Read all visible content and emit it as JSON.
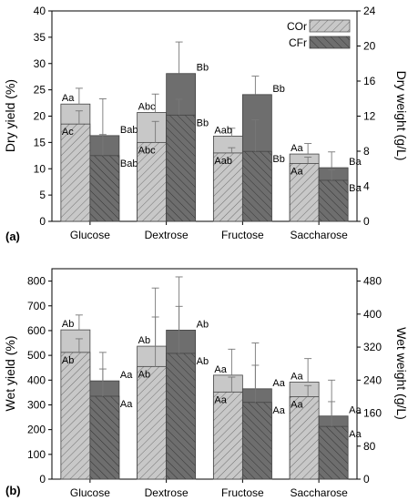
{
  "colors": {
    "cor_fill": "#c8c8c8",
    "cfr_fill": "#6e6e6e",
    "axis": "#000000",
    "hatch": "#000000"
  },
  "chart_data": [
    {
      "type": "bar",
      "subtype": "stacked-bar",
      "panel_label": "(a)",
      "categories": [
        "Glucose",
        "Dextrose",
        "Fructose",
        "Saccharose"
      ],
      "ylabel": "Dry yield (%)",
      "y2label": "Dry weight (g/L)",
      "ylim": [
        0,
        40
      ],
      "y2lim": [
        0,
        24
      ],
      "yticks": [
        "0",
        "5",
        "10",
        "15",
        "20",
        "25",
        "30",
        "35",
        "40"
      ],
      "y2ticks": [
        "0",
        "4",
        "8",
        "12",
        "16",
        "20",
        "24"
      ],
      "legend": {
        "position": "top-right",
        "entries": [
          "COr",
          "CFr"
        ]
      },
      "series": [
        {
          "name": "COr",
          "inner_values": [
            18.5,
            15.0,
            13.0,
            11.0
          ],
          "inner_errors": [
            2.5,
            4.0,
            1.0,
            1.2
          ],
          "inner_labels": [
            "Ac",
            "Abc",
            "Aab",
            "Aa"
          ],
          "total_values": [
            22.3,
            20.7,
            16.2,
            12.8
          ],
          "total_errors": [
            3.0,
            3.5,
            1.5,
            2.0
          ],
          "total_labels": [
            "Aa",
            "Abc",
            "Aab",
            "Aa"
          ]
        },
        {
          "name": "CFr",
          "inner_values": [
            12.5,
            20.2,
            13.3,
            7.8
          ],
          "inner_errors": [
            4.0,
            3.0,
            6.0,
            2.0
          ],
          "inner_labels": [
            "Bab",
            "Bb",
            "Bb",
            "Ba"
          ],
          "total_values": [
            16.3,
            28.1,
            24.1,
            10.2
          ],
          "total_errors": [
            7.0,
            6.0,
            3.5,
            3.0
          ],
          "total_labels": [
            "Bab",
            "Bb",
            "Bb",
            "Ba"
          ]
        }
      ]
    },
    {
      "type": "bar",
      "subtype": "stacked-bar",
      "panel_label": "(b)",
      "categories": [
        "Glucose",
        "Dextrose",
        "Fructose",
        "Saccharose"
      ],
      "ylabel": "Wet yield (%)",
      "y2label": "Wet weight (g/L)",
      "ylim": [
        0,
        850
      ],
      "y2lim": [
        0,
        510
      ],
      "yticks": [
        "0",
        "100",
        "200",
        "300",
        "400",
        "500",
        "600",
        "700",
        "800"
      ],
      "y2ticks": [
        "0",
        "80",
        "160",
        "240",
        "320",
        "400",
        "480"
      ],
      "series": [
        {
          "name": "COr",
          "inner_values": [
            512,
            455,
            352,
            333
          ],
          "inner_errors": [
            55,
            200,
            60,
            45
          ],
          "inner_labels": [
            "Ab",
            "Ab",
            "Aa",
            "Aa"
          ],
          "total_values": [
            603,
            537,
            420,
            392
          ],
          "total_errors": [
            60,
            235,
            105,
            95
          ],
          "total_labels": [
            "Ab",
            "Ab",
            "Aa",
            "Aa"
          ]
        },
        {
          "name": "CFr",
          "inner_values": [
            335,
            508,
            310,
            213
          ],
          "inner_errors": [
            110,
            190,
            150,
            100
          ],
          "inner_labels": [
            "Aa",
            "Ab",
            "Aa",
            "Aa"
          ],
          "total_values": [
            397,
            602,
            365,
            255
          ],
          "total_errors": [
            115,
            215,
            185,
            145
          ],
          "total_labels": [
            "Aa",
            "Ab",
            "Aa",
            "Aa"
          ]
        }
      ]
    }
  ]
}
